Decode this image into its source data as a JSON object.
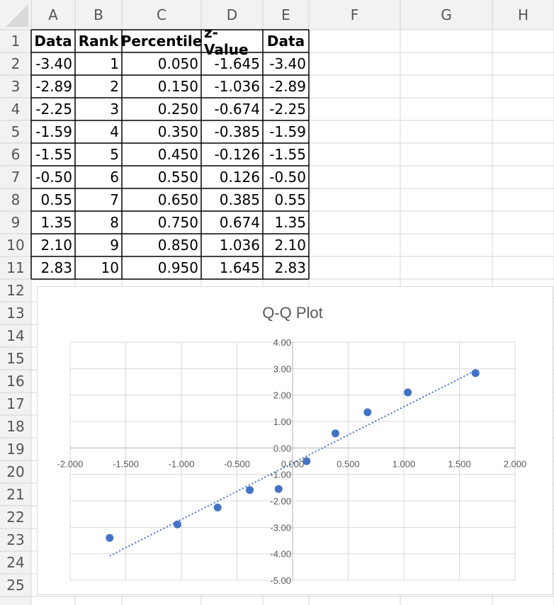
{
  "sheet": {
    "columns": [
      "A",
      "B",
      "C",
      "D",
      "E",
      "F",
      "G",
      "H"
    ],
    "rows": [
      "1",
      "2",
      "3",
      "4",
      "5",
      "6",
      "7",
      "8",
      "9",
      "10",
      "11",
      "12",
      "13",
      "14",
      "15",
      "16",
      "17",
      "18",
      "19",
      "20",
      "21",
      "22",
      "23",
      "24",
      "25"
    ],
    "table": {
      "headers": [
        "Data",
        "Rank",
        "Percentile",
        "z-Value",
        "Data"
      ],
      "rows": [
        [
          "-3.40",
          "1",
          "0.050",
          "-1.645",
          "-3.40"
        ],
        [
          "-2.89",
          "2",
          "0.150",
          "-1.036",
          "-2.89"
        ],
        [
          "-2.25",
          "3",
          "0.250",
          "-0.674",
          "-2.25"
        ],
        [
          "-1.59",
          "4",
          "0.350",
          "-0.385",
          "-1.59"
        ],
        [
          "-1.55",
          "5",
          "0.450",
          "-0.126",
          "-1.55"
        ],
        [
          "-0.50",
          "6",
          "0.550",
          "0.126",
          "-0.50"
        ],
        [
          "0.55",
          "7",
          "0.650",
          "0.385",
          "0.55"
        ],
        [
          "1.35",
          "8",
          "0.750",
          "0.674",
          "1.35"
        ],
        [
          "2.10",
          "9",
          "0.850",
          "1.036",
          "2.10"
        ],
        [
          "2.83",
          "10",
          "0.950",
          "1.645",
          "2.83"
        ]
      ]
    }
  },
  "chart_data": {
    "type": "scatter",
    "title": "Q-Q Plot",
    "xlabel": "",
    "ylabel": "",
    "xlim": [
      -2.0,
      2.0
    ],
    "ylim": [
      -5.0,
      4.0
    ],
    "x_ticks": [
      "-2.000",
      "-1.500",
      "-1.000",
      "-0.500",
      "0.000",
      "0.500",
      "1.000",
      "1.500",
      "2.000"
    ],
    "y_ticks": [
      "4.00",
      "3.00",
      "2.00",
      "1.00",
      "0.00",
      "-1.00",
      "-2.00",
      "-3.00",
      "-4.00",
      "-5.00"
    ],
    "grid": true,
    "legend": "none",
    "series": [
      {
        "x": [
          -1.645,
          -1.036,
          -0.674,
          -0.385,
          -0.126,
          0.126,
          0.385,
          0.674,
          1.036,
          1.645
        ],
        "y": [
          -3.4,
          -2.89,
          -2.25,
          -1.59,
          -1.55,
          -0.5,
          0.55,
          1.35,
          2.1,
          2.83
        ]
      }
    ],
    "trendline": {
      "style": "dotted linear",
      "x": [
        -1.645,
        1.645
      ],
      "y": [
        -4.08,
        2.93
      ]
    },
    "marker_color": "#4472c4",
    "grid_color": "#d9d9d9",
    "label_color": "#595959"
  }
}
